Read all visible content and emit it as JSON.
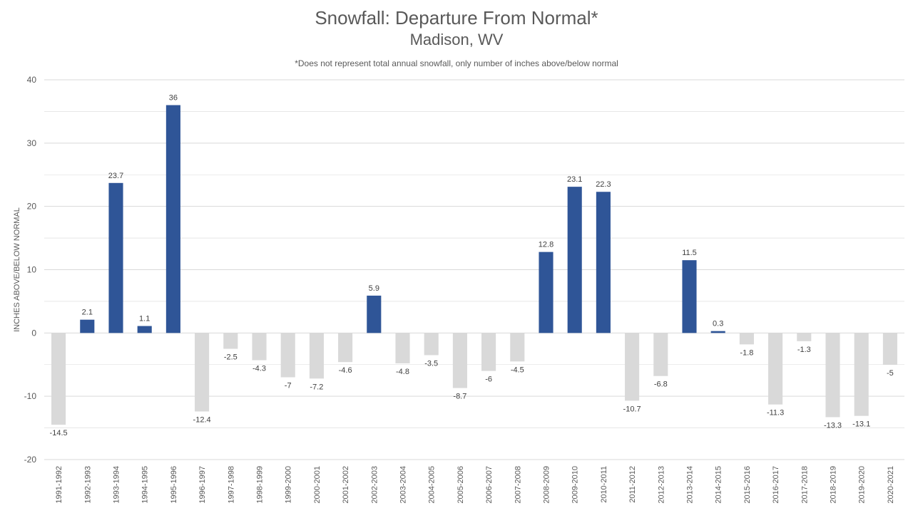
{
  "chart_data": {
    "type": "bar",
    "title": "Snowfall: Departure From Normal*",
    "subtitle": "Madison, WV",
    "note": "*Does not represent  total annual snowfall, only number of inches above/below normal",
    "xlabel": "",
    "ylabel": "INCHES ABOVE/BELOW NORMAL",
    "ylim": [
      -20,
      40
    ],
    "yticks": [
      -20,
      -10,
      0,
      10,
      20,
      30,
      40
    ],
    "grid": true,
    "legend": "none",
    "colors": {
      "positive": "#2f5597",
      "negative": "#d9d9d9",
      "grid": "#d9d9d9",
      "text": "#595959",
      "label": "#404040"
    },
    "categories": [
      "1991-1992",
      "1992-1993",
      "1993-1994",
      "1994-1995",
      "1995-1996",
      "1996-1997",
      "1997-1998",
      "1998-1999",
      "1999-2000",
      "2000-2001",
      "2001-2002",
      "2002-2003",
      "2003-2004",
      "2004-2005",
      "2005-2006",
      "2006-2007",
      "2007-2008",
      "2008-2009",
      "2009-2010",
      "2010-2011",
      "2011-2012",
      "2012-2013",
      "2013-2014",
      "2014-2015",
      "2015-2016",
      "2016-2017",
      "2017-2018",
      "2018-2019",
      "2019-2020",
      "2020-2021"
    ],
    "values": [
      -14.5,
      2.1,
      23.7,
      1.1,
      36,
      -12.4,
      -2.5,
      -4.3,
      -7,
      -7.2,
      -4.6,
      5.9,
      -4.8,
      -3.5,
      -8.7,
      -6,
      -4.5,
      12.8,
      23.1,
      22.3,
      -10.7,
      -6.8,
      11.5,
      0.3,
      -1.8,
      -11.3,
      -1.3,
      -13.3,
      -13.1,
      -5
    ]
  }
}
